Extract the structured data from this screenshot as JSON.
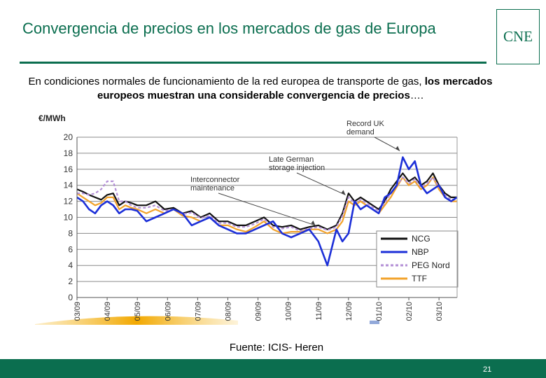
{
  "slide": {
    "title": "Convergencia de precios en los mercados de gas de Europa",
    "logo_text": "CNE",
    "subtitle_plain": "En condiciones normales de funcionamiento de la red europea de transporte de gas, ",
    "subtitle_bold": "los mercados europeos muestran una considerable convergencia de precios",
    "subtitle_end": "….",
    "source": "Fuente: ICIS- Heren",
    "page_number": "21"
  },
  "colors": {
    "brand_green": "#0b6e4f",
    "ncg": "#111111",
    "nbp": "#1c2fd8",
    "peg_nord": "#b38fd6",
    "ttf": "#f2a22a"
  },
  "chart_data": {
    "type": "line",
    "ylabel": "€/MWh",
    "ylim": [
      0,
      20
    ],
    "yticks": [
      0,
      2,
      4,
      6,
      8,
      10,
      12,
      14,
      16,
      18,
      20
    ],
    "xlim": [
      0,
      12.6
    ],
    "categories": [
      "03/09",
      "04/09",
      "05/09",
      "06/09",
      "07/09",
      "08/09",
      "09/09",
      "10/09",
      "11/09",
      "12/09",
      "01/10",
      "02/10",
      "03/10"
    ],
    "grid": true,
    "legend_position": "bottom-right",
    "annotations": [
      {
        "text": "Record UK demand",
        "x": 10.7,
        "y": 18.3
      },
      {
        "text": "Late German storage injection",
        "x": 8.9,
        "y": 12.8
      },
      {
        "text": "Interconnector maintenance",
        "x": 7.9,
        "y": 9.0
      }
    ],
    "series": [
      {
        "name": "NCG",
        "color_key": "ncg",
        "dashed": false,
        "x": [
          0,
          0.2,
          0.4,
          0.6,
          0.8,
          1.0,
          1.2,
          1.4,
          1.6,
          1.8,
          2.0,
          2.3,
          2.6,
          2.9,
          3.2,
          3.5,
          3.8,
          4.1,
          4.4,
          4.7,
          5.0,
          5.3,
          5.6,
          5.9,
          6.2,
          6.5,
          6.8,
          7.1,
          7.4,
          7.7,
          8.0,
          8.3,
          8.6,
          8.8,
          9.0,
          9.2,
          9.4,
          9.6,
          9.8,
          10.0,
          10.2,
          10.4,
          10.6,
          10.8,
          11.0,
          11.2,
          11.4,
          11.6,
          11.8,
          12.0,
          12.2,
          12.4,
          12.6
        ],
        "y": [
          13.5,
          13.2,
          12.8,
          12.5,
          12.2,
          12.8,
          13.0,
          11.5,
          12.0,
          11.8,
          11.5,
          11.5,
          12.0,
          11.0,
          11.2,
          10.5,
          10.8,
          10.0,
          10.5,
          9.5,
          9.5,
          9.0,
          9.0,
          9.5,
          10.0,
          9.0,
          8.8,
          9.0,
          8.5,
          8.8,
          9.0,
          8.5,
          9.0,
          10.5,
          13.0,
          12.0,
          12.5,
          12.0,
          11.5,
          11.0,
          12.0,
          13.5,
          14.5,
          15.5,
          14.5,
          15.0,
          14.0,
          14.5,
          15.5,
          14.0,
          13.0,
          12.5,
          12.5
        ]
      },
      {
        "name": "NBP",
        "color_key": "nbp",
        "dashed": false,
        "x": [
          0,
          0.2,
          0.4,
          0.6,
          0.8,
          1.0,
          1.2,
          1.4,
          1.6,
          1.8,
          2.0,
          2.3,
          2.6,
          2.9,
          3.2,
          3.5,
          3.8,
          4.1,
          4.4,
          4.7,
          5.0,
          5.3,
          5.6,
          5.9,
          6.2,
          6.5,
          6.8,
          7.1,
          7.4,
          7.7,
          8.0,
          8.3,
          8.6,
          8.8,
          9.0,
          9.2,
          9.4,
          9.6,
          9.8,
          10.0,
          10.2,
          10.4,
          10.6,
          10.8,
          11.0,
          11.2,
          11.4,
          11.6,
          11.8,
          12.0,
          12.2,
          12.4,
          12.6
        ],
        "y": [
          12.5,
          12.0,
          11.0,
          10.5,
          11.5,
          12.0,
          11.5,
          10.5,
          11.0,
          11.0,
          10.8,
          9.5,
          10.0,
          10.5,
          11.0,
          10.5,
          9.0,
          9.5,
          10.0,
          9.0,
          8.5,
          8.0,
          8.0,
          8.5,
          9.0,
          9.5,
          8.0,
          7.5,
          8.0,
          8.5,
          7.0,
          4.0,
          8.5,
          7.0,
          8.0,
          12.0,
          11.0,
          11.5,
          11.0,
          10.5,
          12.5,
          13.0,
          14.0,
          17.5,
          16.0,
          17.0,
          14.0,
          13.0,
          13.5,
          14.0,
          12.5,
          12.0,
          12.5
        ]
      },
      {
        "name": "PEG Nord",
        "color_key": "peg_nord",
        "dashed": true,
        "x": [
          0,
          0.2,
          0.4,
          0.6,
          0.8,
          1.0,
          1.2,
          1.4,
          1.6,
          1.8,
          2.0,
          2.3,
          2.6,
          2.9,
          3.2,
          3.5,
          3.8,
          4.1,
          4.4,
          4.7,
          5.0,
          5.3,
          5.6,
          5.9,
          6.2,
          6.5,
          6.8,
          7.1,
          7.4,
          7.7,
          8.0,
          8.3,
          8.6,
          8.8,
          9.0,
          9.2,
          9.4,
          9.6,
          9.8,
          10.0,
          10.2,
          10.4,
          10.6,
          10.8,
          11.0,
          11.2,
          11.4,
          11.6,
          11.8,
          12.0,
          12.2,
          12.4,
          12.6
        ],
        "y": [
          13.0,
          13.0,
          12.8,
          13.0,
          13.5,
          14.5,
          14.5,
          12.0,
          12.0,
          11.5,
          11.2,
          11.2,
          11.5,
          10.8,
          11.0,
          10.4,
          10.6,
          9.9,
          10.2,
          9.3,
          9.3,
          8.8,
          8.8,
          9.2,
          9.8,
          8.8,
          8.6,
          8.8,
          8.3,
          8.6,
          8.8,
          8.4,
          8.8,
          10.2,
          12.5,
          11.8,
          12.2,
          11.8,
          11.3,
          10.8,
          11.8,
          13.0,
          14.0,
          15.0,
          14.2,
          14.8,
          13.8,
          14.2,
          15.0,
          13.8,
          12.8,
          12.2,
          12.3
        ]
      },
      {
        "name": "TTF",
        "color_key": "ttf",
        "dashed": false,
        "x": [
          0,
          0.2,
          0.4,
          0.6,
          0.8,
          1.0,
          1.2,
          1.4,
          1.6,
          1.8,
          2.0,
          2.3,
          2.6,
          2.9,
          3.2,
          3.5,
          3.8,
          4.1,
          4.4,
          4.7,
          5.0,
          5.3,
          5.6,
          5.9,
          6.2,
          6.5,
          6.8,
          7.1,
          7.4,
          7.7,
          8.0,
          8.3,
          8.6,
          8.8,
          9.0,
          9.2,
          9.4,
          9.6,
          9.8,
          10.0,
          10.2,
          10.4,
          10.6,
          10.8,
          11.0,
          11.2,
          11.4,
          11.6,
          11.8,
          12.0,
          12.2,
          12.4,
          12.6
        ],
        "y": [
          13.0,
          12.5,
          12.0,
          11.5,
          11.8,
          12.5,
          12.5,
          11.0,
          11.5,
          11.2,
          11.0,
          10.5,
          11.0,
          10.5,
          11.0,
          10.2,
          10.0,
          9.5,
          10.0,
          9.0,
          9.0,
          8.5,
          8.2,
          8.8,
          9.5,
          8.5,
          8.0,
          8.2,
          8.2,
          8.5,
          8.5,
          8.0,
          8.5,
          9.5,
          12.0,
          11.5,
          12.0,
          11.5,
          11.0,
          10.5,
          11.5,
          12.5,
          13.8,
          15.0,
          14.0,
          14.5,
          13.5,
          14.0,
          15.0,
          13.5,
          12.5,
          12.0,
          12.0
        ]
      }
    ]
  }
}
